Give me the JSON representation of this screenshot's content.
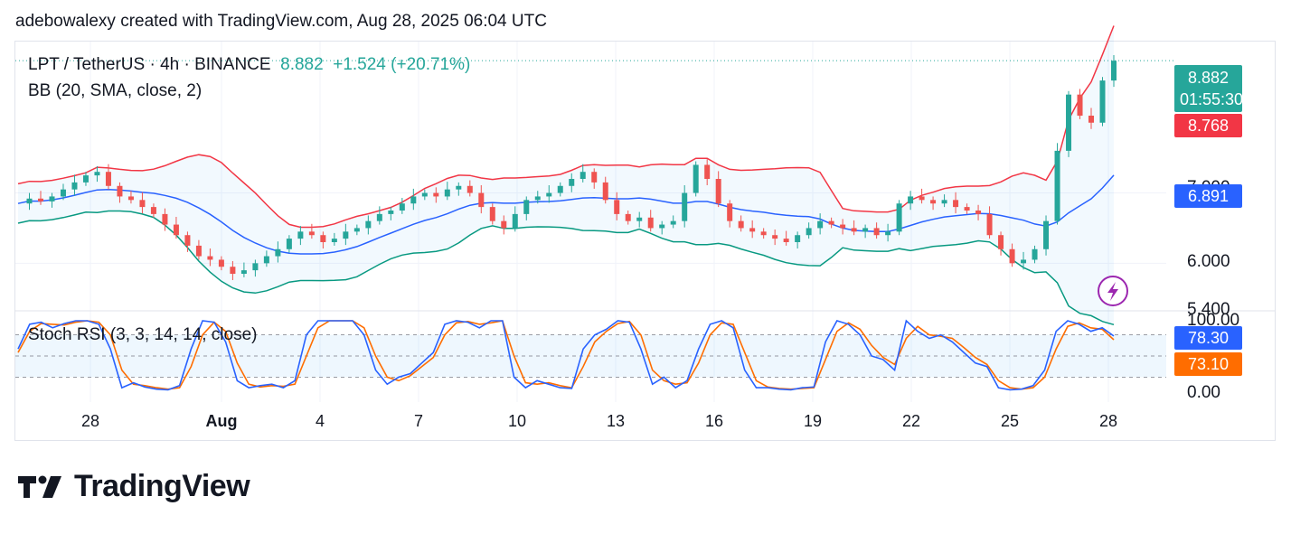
{
  "header": {
    "attribution": "adebowalexy created with TradingView.com, Aug 28, 2025 06:04 UTC"
  },
  "legend": {
    "symbol": "LPT / TetherUS · 4h · BINANCE",
    "price": "8.882",
    "change": "+1.524 (+20.71%)",
    "bb": "BB (20, SMA, close, 2)",
    "stoch": "Stoch RSI (3, 3, 14, 14, close)"
  },
  "price_axis": {
    "labels": [
      "8.882",
      "7.000",
      "6.000",
      "5.400"
    ]
  },
  "tags": {
    "last_price": "8.882",
    "countdown": "01:55:30",
    "bb_upper": "8.768",
    "bb_basis": "6.891",
    "stoch_k": "78.30",
    "stoch_d": "73.10"
  },
  "stoch_axis": {
    "labels": [
      "100.00",
      "0.00"
    ]
  },
  "time_axis": {
    "labels": [
      "28",
      "Aug",
      "4",
      "7",
      "10",
      "13",
      "16",
      "19",
      "22",
      "25",
      "28"
    ]
  },
  "logo": {
    "text": "TradingView"
  },
  "colors": {
    "up": "#26a69a",
    "down": "#ef5350",
    "bb_upper": "#f23645",
    "bb_basis": "#2962ff",
    "bb_lower": "#089981",
    "stoch_k": "#2962ff",
    "stoch_d": "#ff6d00",
    "lightning": "#9c27b0"
  },
  "chart_data": {
    "type": "candlestick",
    "symbol": "LPT / TetherUS",
    "interval": "4h",
    "exchange": "BINANCE",
    "price_range": [
      5.4,
      9.0
    ],
    "x_ticks": [
      "28",
      "Aug",
      "4",
      "7",
      "10",
      "13",
      "16",
      "19",
      "22",
      "25",
      "28"
    ],
    "close_series": [
      6.85,
      6.92,
      6.88,
      6.95,
      7.05,
      7.15,
      7.25,
      7.3,
      7.1,
      6.95,
      6.9,
      6.8,
      6.7,
      6.55,
      6.4,
      6.25,
      6.1,
      6.05,
      5.95,
      5.85,
      5.9,
      6.0,
      6.1,
      6.2,
      6.35,
      6.45,
      6.4,
      6.3,
      6.35,
      6.45,
      6.5,
      6.6,
      6.7,
      6.75,
      6.85,
      6.95,
      7.0,
      6.95,
      7.05,
      7.1,
      7.0,
      6.8,
      6.6,
      6.5,
      6.7,
      6.9,
      6.95,
      7.0,
      7.1,
      7.2,
      7.3,
      7.15,
      6.9,
      6.7,
      6.6,
      6.65,
      6.5,
      6.55,
      6.6,
      7.0,
      7.4,
      7.2,
      6.85,
      6.6,
      6.5,
      6.45,
      6.4,
      6.35,
      6.3,
      6.4,
      6.5,
      6.6,
      6.55,
      6.5,
      6.45,
      6.5,
      6.4,
      6.45,
      6.85,
      6.95,
      6.9,
      6.85,
      6.9,
      6.8,
      6.75,
      6.7,
      6.4,
      6.2,
      6.0,
      6.05,
      6.2,
      6.6,
      7.6,
      8.4,
      8.1,
      8.0,
      8.6,
      8.882
    ],
    "bollinger": {
      "params": "20, SMA, close, 2",
      "upper_last": 8.768,
      "basis_last": 6.891
    },
    "stoch_rsi": {
      "params": "3, 3, 14, 14, close",
      "range": [
        0,
        100
      ],
      "k_last": 78.3,
      "d_last": 73.1,
      "k": [
        60,
        95,
        98,
        90,
        96,
        100,
        100,
        95,
        60,
        5,
        12,
        6,
        3,
        2,
        8,
        60,
        100,
        98,
        70,
        15,
        5,
        8,
        10,
        5,
        15,
        80,
        100,
        100,
        100,
        100,
        80,
        30,
        10,
        20,
        25,
        40,
        55,
        95,
        100,
        98,
        90,
        100,
        100,
        20,
        5,
        15,
        10,
        5,
        4,
        60,
        80,
        88,
        100,
        98,
        60,
        10,
        20,
        5,
        15,
        60,
        95,
        100,
        90,
        30,
        5,
        5,
        3,
        2,
        5,
        6,
        70,
        100,
        95,
        80,
        50,
        45,
        30,
        100,
        85,
        75,
        80,
        70,
        55,
        40,
        35,
        5,
        2,
        3,
        8,
        30,
        85,
        100,
        95,
        85,
        90,
        78.3
      ],
      "d": [
        55,
        85,
        96,
        95,
        94,
        98,
        100,
        98,
        80,
        30,
        10,
        8,
        5,
        3,
        5,
        35,
        80,
        98,
        85,
        40,
        10,
        6,
        8,
        7,
        10,
        50,
        90,
        100,
        100,
        100,
        90,
        50,
        20,
        15,
        22,
        35,
        48,
        80,
        97,
        99,
        95,
        97,
        100,
        50,
        12,
        10,
        12,
        8,
        5,
        35,
        70,
        85,
        96,
        99,
        80,
        30,
        15,
        10,
        12,
        40,
        80,
        97,
        95,
        55,
        15,
        6,
        4,
        3,
        4,
        5,
        45,
        85,
        97,
        88,
        65,
        48,
        38,
        75,
        92,
        80,
        78,
        75,
        62,
        48,
        38,
        15,
        5,
        3,
        5,
        20,
        60,
        92,
        97,
        90,
        88,
        73.1
      ]
    }
  }
}
